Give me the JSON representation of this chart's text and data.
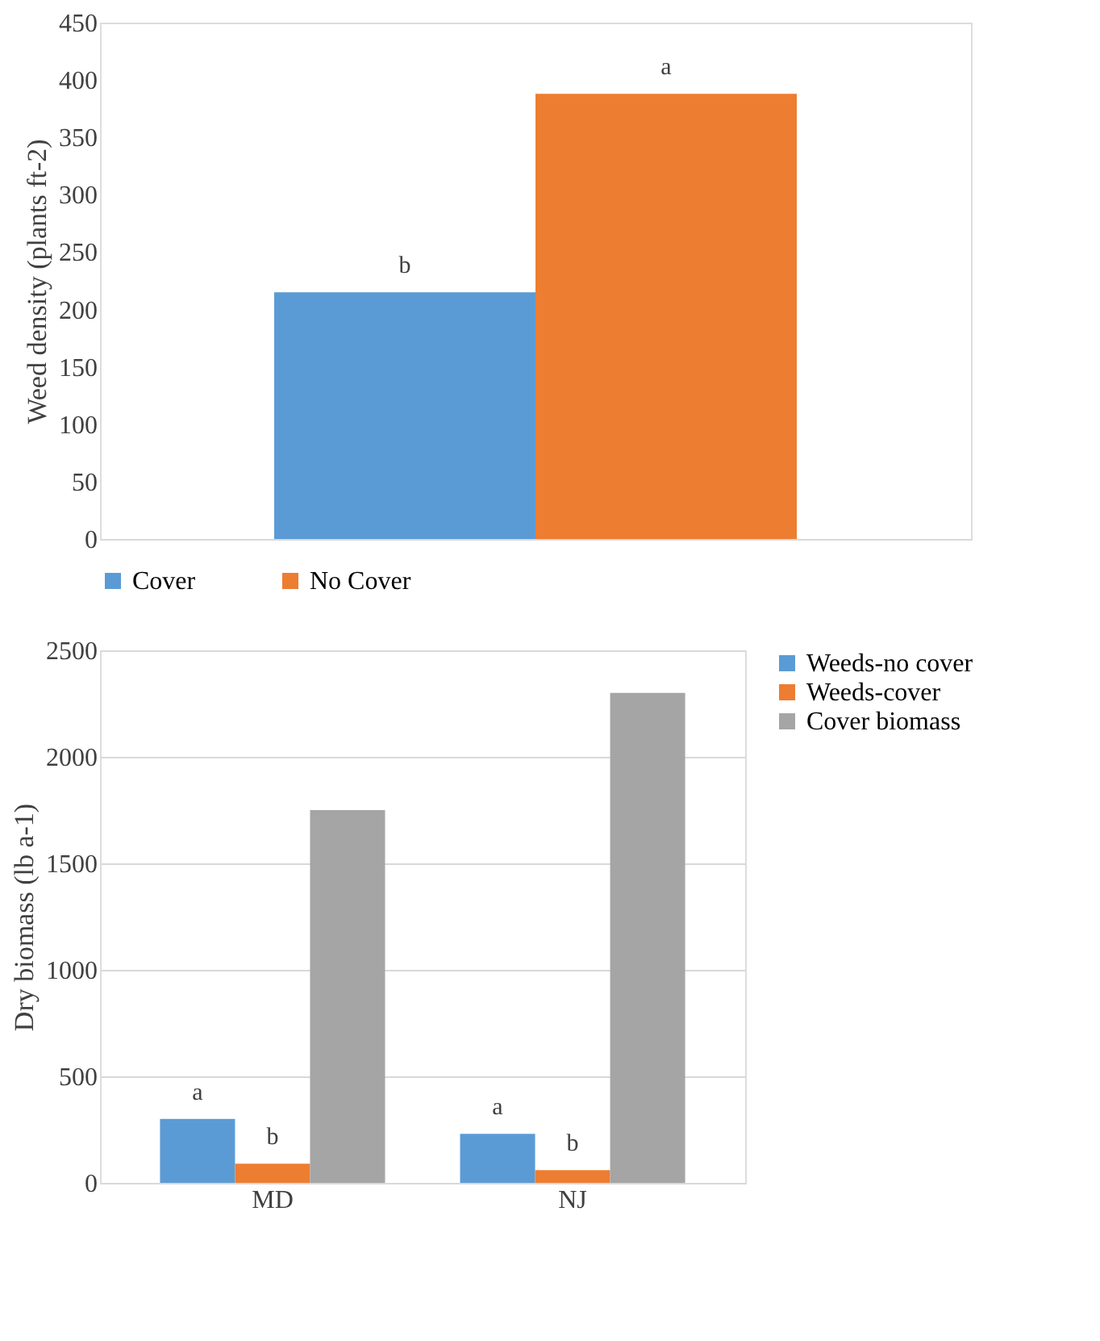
{
  "chart_data": [
    {
      "type": "bar",
      "ylabel": "Weed density (plants ft-2)",
      "categories": [
        null
      ],
      "ylim": [
        0,
        450
      ],
      "yticks": [
        0,
        50,
        100,
        150,
        200,
        250,
        300,
        350,
        400,
        450
      ],
      "grid": false,
      "legend": "bottom",
      "tick_labels": "y",
      "series": [
        {
          "name": "Cover",
          "color": "#5b9bd5",
          "values": [
            215
          ]
        },
        {
          "name": "No Cover",
          "color": "#ed7d31",
          "values": [
            388
          ]
        }
      ],
      "annotations": [
        {
          "text": "b",
          "y": 215
        },
        {
          "text": "a",
          "y": 388
        }
      ]
    },
    {
      "type": "bar",
      "ylabel": "Dry biomass (lb a-1)",
      "categories": [
        "MD",
        "NJ"
      ],
      "ylim": [
        0,
        2500
      ],
      "yticks": [
        0,
        500,
        1000,
        1500,
        2000,
        2500
      ],
      "grid": "y",
      "legend": "right",
      "series": [
        {
          "name": "Weeds-no cover",
          "color": "#5b9bd5",
          "values": [
            300,
            230
          ],
          "value_labels": [
            "a",
            "a"
          ]
        },
        {
          "name": "Weeds-cover",
          "color": "#ed7d31",
          "values": [
            90,
            60
          ],
          "value_labels": [
            "b",
            "b"
          ]
        },
        {
          "name": "Cover biomass",
          "color": "#a5a5a5",
          "values": [
            1750,
            2300
          ]
        }
      ]
    }
  ]
}
